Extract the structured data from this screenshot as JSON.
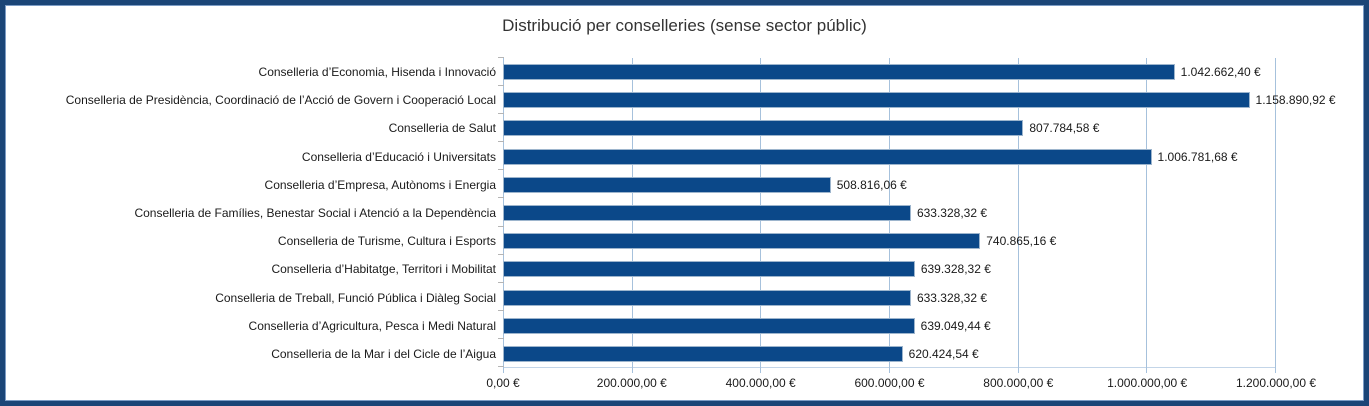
{
  "chart_data": {
    "type": "bar",
    "orientation": "horizontal",
    "title": "Distribució per conselleries (sense sector públic)",
    "categories": [
      "Conselleria d’Economia, Hisenda i Innovació",
      "Conselleria de Presidència, Coordinació de l’Acció de Govern i Cooperació Local",
      "Conselleria de Salut",
      "Conselleria d’Educació i Universitats",
      "Conselleria d’Empresa, Autònoms i Energia",
      "Conselleria de Famílies, Benestar Social i Atenció a la Dependència",
      "Conselleria de Turisme, Cultura i Esports",
      "Conselleria d’Habitatge, Territori i Mobilitat",
      "Conselleria de Treball, Funció Pública i Diàleg Social",
      "Conselleria d’Agricultura, Pesca i Medi Natural",
      "Conselleria de la Mar i del Cicle de l’Aigua"
    ],
    "values": [
      1042662.4,
      1158890.92,
      807784.58,
      1006781.68,
      508816.06,
      633328.32,
      740865.16,
      639328.32,
      633328.32,
      639049.44,
      620424.54
    ],
    "value_labels": [
      "1.042.662,40 €",
      "1.158.890,92 €",
      "807.784,58 €",
      "1.006.781,68 €",
      "508.816,06 €",
      "633.328,32 €",
      "740.865,16 €",
      "639.328,32 €",
      "633.328,32 €",
      "639.049,44 €",
      "620.424,54 €"
    ],
    "x_tick_labels": [
      "0,00 €",
      "200.000,00 €",
      "400.000,00 €",
      "600.000,00 €",
      "800.000,00 €",
      "1.000.000,00 €",
      "1.200.000,00 €"
    ],
    "xlim": [
      0,
      1200000
    ],
    "xlabel": "",
    "ylabel": "",
    "grid": "vertical",
    "legend": "none",
    "colors": {
      "bar_fill": "#0b4889",
      "bar_border": "#9db5cd",
      "gridline": "#a6c1dc",
      "frame_border": "#1b4577",
      "frame_inner_line": "#7c9cc5",
      "title_text": "#333333",
      "label_text": "#1a1a1a"
    }
  }
}
